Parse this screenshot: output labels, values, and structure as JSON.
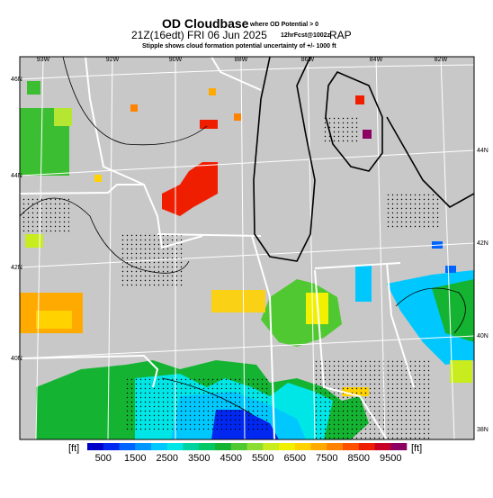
{
  "header": {
    "title": "OD Cloudbase",
    "title_note": "where OD Potential > 0",
    "subtitle": "21Z(16edt) FRI 06 Jun 2025",
    "forecast": "12hrFcst@1002z",
    "model": "RAP",
    "note": "Stipple shows cloud formation potential uncertainty of +/- 1000 ft"
  },
  "map": {
    "lon_labels": [
      "93W",
      "92W",
      "90W",
      "88W",
      "86W",
      "84W",
      "82W"
    ],
    "lat_labels_left": [
      "46N",
      "44N",
      "42N",
      "40N"
    ],
    "lat_labels_right": [
      "44N",
      "42N",
      "40N",
      "38N"
    ]
  },
  "colorbar": {
    "unit": "[ft]",
    "ticks": [
      500,
      1500,
      2500,
      3500,
      4500,
      5500,
      6500,
      7500,
      8500,
      9500
    ],
    "colors": [
      "#0000c8",
      "#0028f0",
      "#0064ff",
      "#0096ff",
      "#00c8ff",
      "#00e6e6",
      "#00d2a0",
      "#00c864",
      "#14b432",
      "#50c832",
      "#8cdc32",
      "#c8ec1e",
      "#f0f000",
      "#ffd200",
      "#ffaa00",
      "#ff8200",
      "#ff5000",
      "#f01e00",
      "#c80028",
      "#8c0064"
    ]
  }
}
